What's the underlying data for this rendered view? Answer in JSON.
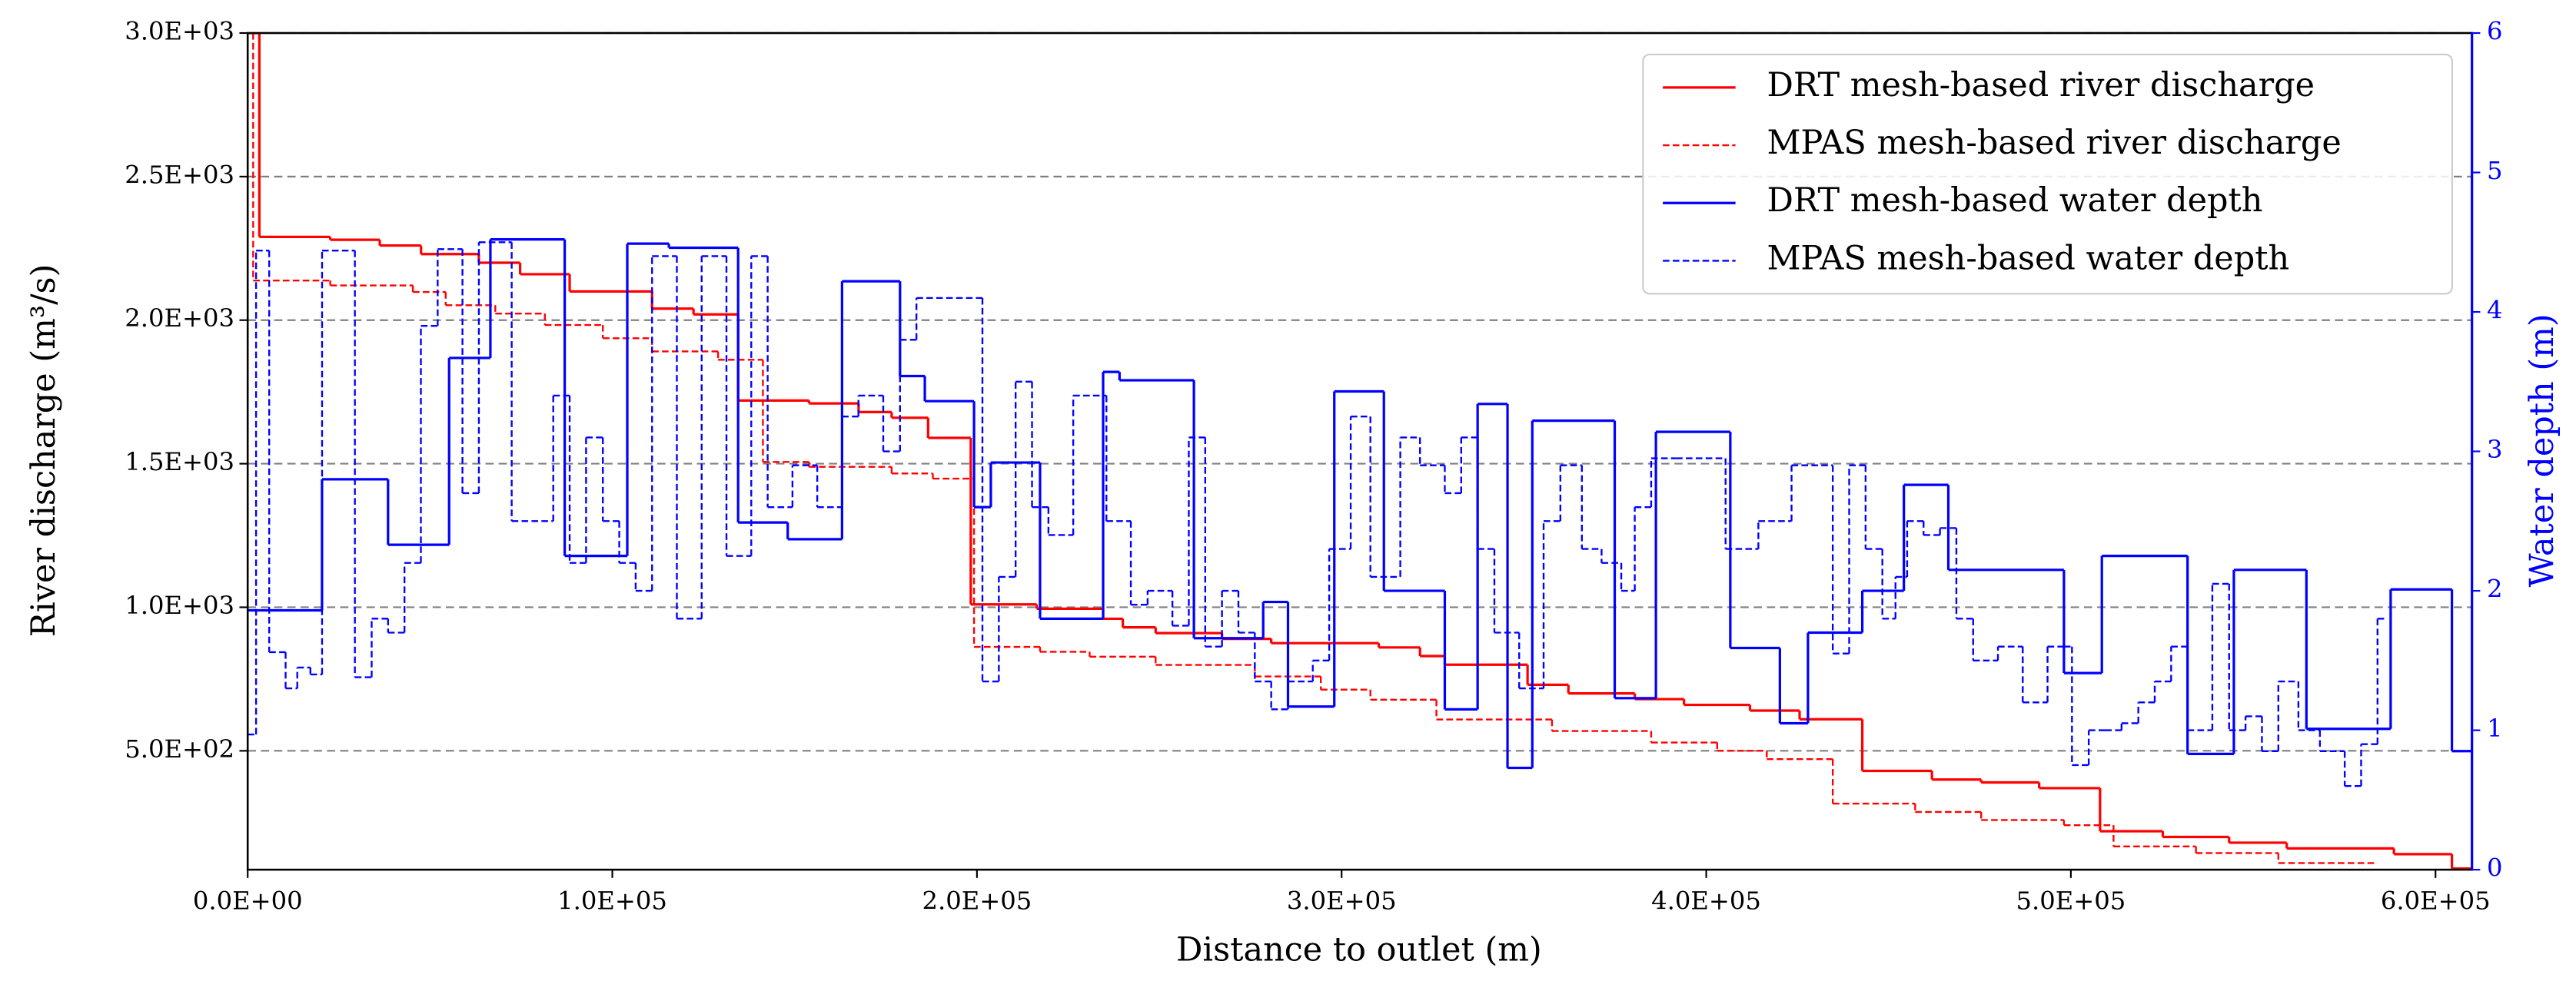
{
  "chart_data": {
    "type": "step",
    "x_label": "Distance to outlet (m)",
    "y_label": "River discharge (m³/s)",
    "y2_label": "Water depth (m)",
    "y2_color": "#0000ff",
    "xlim": [
      0,
      610000
    ],
    "ylim": [
      86,
      3000
    ],
    "y2lim": [
      0,
      6
    ],
    "xticks": [
      {
        "value": 0,
        "label": "0.0E+00"
      },
      {
        "value": 100000,
        "label": "1.0E+05"
      },
      {
        "value": 200000,
        "label": "2.0E+05"
      },
      {
        "value": 300000,
        "label": "3.0E+05"
      },
      {
        "value": 400000,
        "label": "4.0E+05"
      },
      {
        "value": 500000,
        "label": "5.0E+05"
      },
      {
        "value": 600000,
        "label": "6.0E+05"
      }
    ],
    "yticks": [
      {
        "value": 500,
        "label": "5.0E+02"
      },
      {
        "value": 1000,
        "label": "1.0E+03"
      },
      {
        "value": 1500,
        "label": "1.5E+03"
      },
      {
        "value": 2000,
        "label": "2.0E+03"
      },
      {
        "value": 2500,
        "label": "2.5E+03"
      },
      {
        "value": 3000,
        "label": "3.0E+03"
      }
    ],
    "y2ticks": [
      0,
      1,
      2,
      3,
      4,
      5,
      6
    ],
    "grid": true,
    "legend": "upper right",
    "series": [
      {
        "name": "DRT mesh-based river discharge",
        "color": "#ff0000",
        "dashed": false,
        "axis": "y",
        "edges": [
          0,
          3200,
          22640,
          36220,
          47540,
          63390,
          74710,
          88300,
          110900,
          122260,
          134500,
          153950,
          167540,
          176600,
          186600,
          198300,
          216400,
          234600,
          240000,
          249000,
          267200,
          280700,
          310200,
          321500,
          328300,
          351000,
          362200,
          380400,
          393900,
          412000,
          425600,
          442800,
          461900,
          475400,
          491300,
          508000,
          525200,
          543400,
          559200,
          588600,
          604500,
          610000
        ],
        "values": [
          3000,
          2290,
          2280,
          2260,
          2230,
          2200,
          2160,
          2100,
          2040,
          2020,
          1720,
          1710,
          1680,
          1660,
          1590,
          1010,
          995,
          960,
          930,
          910,
          890,
          875,
          860,
          830,
          800,
          730,
          700,
          680,
          660,
          640,
          610,
          430,
          400,
          390,
          370,
          220,
          200,
          180,
          160,
          140,
          90
        ]
      },
      {
        "name": "MPAS mesh-based river discharge",
        "color": "#ff0000",
        "dashed": true,
        "axis": "y",
        "edges": [
          0,
          1500,
          22640,
          45300,
          54300,
          67900,
          81500,
          97400,
          110900,
          129000,
          141300,
          153950,
          176600,
          187900,
          199200,
          217300,
          230900,
          249000,
          276200,
          294300,
          307900,
          326000,
          357700,
          384900,
          403000,
          416600,
          434700,
          457300,
          475400,
          498100,
          511700,
          534300,
          556900,
          584100
        ],
        "values": [
          3000,
          2138,
          2121,
          2098,
          2052,
          2023,
          1983,
          1937,
          1891,
          1862,
          1506,
          1489,
          1466,
          1448,
          862,
          845,
          828,
          799,
          759,
          713,
          678,
          609,
          569,
          529,
          500,
          471,
          316,
          287,
          259,
          241,
          167,
          144,
          109
        ]
      },
      {
        "name": "DRT mesh-based water depth",
        "color": "#0000ff",
        "dashed": false,
        "axis": "y2",
        "edges": [
          0,
          20380,
          38490,
          55240,
          66560,
          86940,
          104100,
          115500,
          134500,
          148100,
          163000,
          178900,
          185700,
          199200,
          203800,
          217300,
          234600,
          239100,
          259500,
          278500,
          285300,
          298000,
          311600,
          328300,
          337300,
          345500,
          352300,
          374900,
          386200,
          406600,
          420200,
          427900,
          442800,
          454200,
          466400,
          498100,
          508500,
          532000,
          544700,
          564600,
          587700,
          604500,
          610000
        ],
        "values": [
          1.86,
          2.8,
          2.33,
          3.67,
          4.52,
          2.25,
          4.49,
          4.46,
          2.49,
          2.37,
          4.22,
          3.54,
          3.36,
          2.6,
          2.92,
          1.8,
          3.57,
          3.51,
          1.66,
          1.92,
          1.17,
          3.43,
          2.0,
          1.15,
          3.34,
          0.73,
          3.22,
          1.23,
          3.14,
          1.59,
          1.05,
          1.7,
          2.0,
          2.76,
          2.15,
          1.41,
          2.25,
          0.83,
          2.15,
          1.01,
          2.01,
          0.85
        ]
      },
      {
        "name": "MPAS mesh-based water depth",
        "color": "#0000ff",
        "dashed": true,
        "axis": "y2",
        "edges": [
          0,
          2300,
          5900,
          10400,
          13600,
          17200,
          20400,
          29400,
          34000,
          38500,
          43000,
          47500,
          52100,
          58900,
          63400,
          72400,
          83800,
          88300,
          92800,
          97400,
          101900,
          106400,
          110900,
          117700,
          124500,
          131300,
          138100,
          142600,
          149400,
          156200,
          163000,
          167500,
          174300,
          178900,
          183400,
          201500,
          206000,
          210600,
          215100,
          219600,
          226400,
          235500,
          242200,
          246800,
          253600,
          258100,
          262600,
          267200,
          271700,
          276200,
          280700,
          285300,
          292100,
          296600,
          302500,
          307900,
          316100,
          321500,
          328300,
          332800,
          337300,
          341900,
          348700,
          355400,
          360000,
          365900,
          371300,
          376700,
          380400,
          384900,
          391700,
          405300,
          414300,
          423400,
          434700,
          439200,
          443700,
          448300,
          451900,
          455100,
          459600,
          464100,
          468600,
          473200,
          480000,
          486800,
          493600,
          498100,
          500300,
          504900,
          509400,
          513900,
          518500,
          523000,
          527500,
          532000,
          538800,
          543400,
          547900,
          552400,
          556900,
          562400,
          568300,
          575100,
          579600,
          584100,
          586400
        ],
        "values": [
          0.97,
          4.44,
          1.56,
          1.3,
          1.45,
          1.4,
          4.44,
          1.38,
          1.8,
          1.7,
          2.2,
          3.9,
          4.45,
          2.7,
          4.5,
          2.5,
          3.4,
          2.2,
          3.1,
          2.5,
          2.2,
          2.0,
          4.4,
          1.8,
          4.4,
          2.25,
          4.4,
          2.6,
          2.9,
          2.6,
          3.25,
          3.4,
          3.0,
          3.8,
          4.1,
          1.35,
          2.1,
          3.5,
          2.6,
          2.4,
          3.4,
          2.5,
          1.9,
          2.0,
          1.75,
          3.1,
          1.6,
          2.0,
          1.7,
          1.35,
          1.15,
          1.35,
          1.5,
          2.3,
          3.25,
          2.1,
          3.1,
          2.9,
          2.7,
          3.1,
          2.3,
          1.7,
          1.3,
          2.5,
          2.9,
          2.3,
          2.2,
          2.0,
          2.6,
          2.95,
          2.95,
          2.3,
          2.5,
          2.9,
          1.55,
          2.9,
          2.3,
          1.8,
          2.1,
          2.5,
          2.4,
          2.45,
          1.8,
          1.5,
          1.6,
          1.2,
          1.6,
          1.6,
          0.75,
          1.0,
          1.0,
          1.05,
          1.2,
          1.35,
          1.6,
          1.0,
          2.05,
          1.0,
          1.1,
          0.85,
          1.35,
          1.0,
          0.85,
          0.6,
          0.9,
          1.8
        ]
      }
    ]
  }
}
